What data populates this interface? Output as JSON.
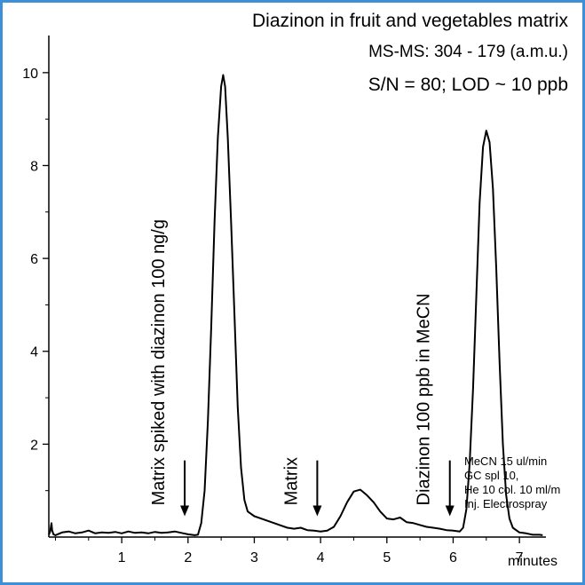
{
  "chart_data": {
    "type": "line",
    "title": "Diazinon in fruit and vegetables matrix",
    "subtitle_1": "MS-MS: 304 - 179 (a.m.u.)",
    "subtitle_2": "S/N = 80; LOD ~ 10 ppb",
    "xlabel": "minutes",
    "ylabel": "",
    "xlim": [
      -0.1,
      7.4
    ],
    "ylim": [
      0,
      10.8
    ],
    "xticks": [
      1,
      2,
      3,
      4,
      5,
      6,
      7
    ],
    "yticks": [
      2,
      4,
      6,
      8,
      10
    ],
    "grid": false,
    "series": [
      {
        "points": [
          [
            -0.1,
            0.05
          ],
          [
            -0.08,
            0.12
          ],
          [
            -0.06,
            0.3
          ],
          [
            -0.05,
            0.15
          ],
          [
            -0.03,
            0.06
          ],
          [
            0.0,
            0.04
          ],
          [
            0.1,
            0.1
          ],
          [
            0.2,
            0.12
          ],
          [
            0.3,
            0.08
          ],
          [
            0.4,
            0.1
          ],
          [
            0.5,
            0.14
          ],
          [
            0.6,
            0.08
          ],
          [
            0.7,
            0.1
          ],
          [
            0.8,
            0.09
          ],
          [
            0.9,
            0.11
          ],
          [
            1.0,
            0.08
          ],
          [
            1.1,
            0.12
          ],
          [
            1.2,
            0.09
          ],
          [
            1.3,
            0.1
          ],
          [
            1.4,
            0.08
          ],
          [
            1.5,
            0.11
          ],
          [
            1.6,
            0.09
          ],
          [
            1.7,
            0.1
          ],
          [
            1.8,
            0.12
          ],
          [
            1.9,
            0.09
          ],
          [
            2.0,
            0.06
          ],
          [
            2.1,
            0.04
          ],
          [
            2.15,
            0.05
          ],
          [
            2.2,
            0.3
          ],
          [
            2.25,
            1.0
          ],
          [
            2.3,
            2.5
          ],
          [
            2.35,
            4.5
          ],
          [
            2.4,
            6.8
          ],
          [
            2.45,
            8.6
          ],
          [
            2.5,
            9.7
          ],
          [
            2.53,
            9.95
          ],
          [
            2.56,
            9.7
          ],
          [
            2.6,
            8.6
          ],
          [
            2.65,
            6.8
          ],
          [
            2.7,
            4.8
          ],
          [
            2.75,
            2.8
          ],
          [
            2.8,
            1.5
          ],
          [
            2.85,
            0.8
          ],
          [
            2.9,
            0.55
          ],
          [
            3.0,
            0.45
          ],
          [
            3.1,
            0.4
          ],
          [
            3.2,
            0.35
          ],
          [
            3.3,
            0.3
          ],
          [
            3.4,
            0.25
          ],
          [
            3.5,
            0.2
          ],
          [
            3.6,
            0.18
          ],
          [
            3.7,
            0.2
          ],
          [
            3.8,
            0.15
          ],
          [
            3.9,
            0.14
          ],
          [
            4.0,
            0.12
          ],
          [
            4.1,
            0.14
          ],
          [
            4.2,
            0.22
          ],
          [
            4.3,
            0.45
          ],
          [
            4.4,
            0.75
          ],
          [
            4.5,
            0.98
          ],
          [
            4.6,
            1.02
          ],
          [
            4.7,
            0.9
          ],
          [
            4.8,
            0.75
          ],
          [
            4.9,
            0.55
          ],
          [
            5.0,
            0.4
          ],
          [
            5.1,
            0.38
          ],
          [
            5.2,
            0.42
          ],
          [
            5.3,
            0.32
          ],
          [
            5.4,
            0.3
          ],
          [
            5.5,
            0.26
          ],
          [
            5.6,
            0.22
          ],
          [
            5.7,
            0.2
          ],
          [
            5.8,
            0.18
          ],
          [
            5.9,
            0.15
          ],
          [
            6.0,
            0.14
          ],
          [
            6.1,
            0.12
          ],
          [
            6.15,
            0.2
          ],
          [
            6.2,
            0.6
          ],
          [
            6.25,
            1.6
          ],
          [
            6.3,
            3.2
          ],
          [
            6.35,
            5.2
          ],
          [
            6.4,
            7.2
          ],
          [
            6.45,
            8.4
          ],
          [
            6.5,
            8.75
          ],
          [
            6.55,
            8.5
          ],
          [
            6.6,
            7.5
          ],
          [
            6.65,
            5.8
          ],
          [
            6.7,
            3.8
          ],
          [
            6.75,
            2.0
          ],
          [
            6.8,
            0.9
          ],
          [
            6.85,
            0.4
          ],
          [
            6.9,
            0.2
          ],
          [
            7.0,
            0.1
          ],
          [
            7.1,
            0.08
          ],
          [
            7.2,
            0.05
          ],
          [
            7.3,
            0.05
          ],
          [
            7.35,
            0.04
          ]
        ]
      }
    ],
    "annotations": [
      {
        "text": "Matrix spiked with diazinon 100 ng/g",
        "arrow_x": 1.95,
        "arrow_top": 1.65,
        "arrow_bottom": 0.45
      },
      {
        "text": "Matrix",
        "arrow_x": 3.95,
        "arrow_top": 1.65,
        "arrow_bottom": 0.45
      },
      {
        "text": "Diazinon 100 ppb in MeCN",
        "arrow_x": 5.95,
        "arrow_top": 1.65,
        "arrow_bottom": 0.45
      }
    ],
    "conditions": [
      "MeCN 15 ul/min",
      "GC spl 10,",
      "He 10 col. 10 ml/m",
      "Inj. Electrospray"
    ],
    "colors": {
      "frame": "#3d8fd8",
      "line": "#000000"
    }
  }
}
